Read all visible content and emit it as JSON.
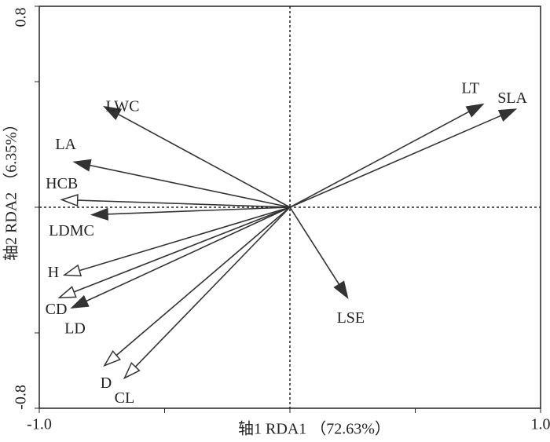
{
  "chart_data": {
    "type": "biplot",
    "xlabel": "轴1 RDA1 （72.63%）",
    "ylabel": "轴2 RDA2 （6.35%）",
    "xlim": [
      -1,
      1
    ],
    "ylim": [
      -0.8,
      0.8
    ],
    "xticks": [
      {
        "value": -1,
        "label": "-1.0"
      },
      {
        "value": 1,
        "label": "1.0"
      }
    ],
    "yticks": [
      {
        "value": -0.8,
        "label": "-0.8"
      },
      {
        "value": 0.8,
        "label": "0.8"
      }
    ],
    "xminor_ticks": [
      -0.5,
      0,
      0.5
    ],
    "yminor_ticks": [
      -0.5,
      0,
      0.5
    ],
    "zero_lines": true,
    "color": "#333333",
    "vectors": [
      {
        "name": "LT",
        "x": 0.77,
        "y": 0.41,
        "head": "filled"
      },
      {
        "name": "SLA",
        "x": 0.9,
        "y": 0.39,
        "head": "filled"
      },
      {
        "name": "LWC",
        "x": -0.74,
        "y": 0.4,
        "head": "filled"
      },
      {
        "name": "LA",
        "x": -0.86,
        "y": 0.18,
        "head": "filled"
      },
      {
        "name": "HCB",
        "x": -0.91,
        "y": 0.03,
        "head": "open"
      },
      {
        "name": "LDMC",
        "x": -0.79,
        "y": -0.03,
        "head": "filled"
      },
      {
        "name": "H",
        "x": -0.9,
        "y": -0.27,
        "head": "open"
      },
      {
        "name": "CD",
        "x": -0.92,
        "y": -0.36,
        "head": "open"
      },
      {
        "name": "LD",
        "x": -0.87,
        "y": -0.4,
        "head": "filled"
      },
      {
        "name": "D",
        "x": -0.74,
        "y": -0.63,
        "head": "open"
      },
      {
        "name": "CL",
        "x": -0.66,
        "y": -0.68,
        "head": "open"
      },
      {
        "name": "LSE",
        "x": 0.23,
        "y": -0.36,
        "head": "filled"
      }
    ]
  }
}
